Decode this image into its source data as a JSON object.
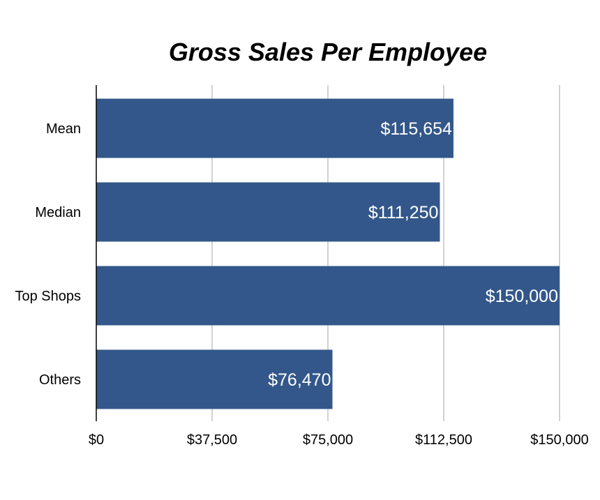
{
  "chart_data": {
    "type": "bar",
    "orientation": "horizontal",
    "title": "Gross Sales Per Employee",
    "xlabel": "",
    "ylabel": "",
    "categories": [
      "Mean",
      "Median",
      "Top Shops",
      "Others"
    ],
    "values": [
      115654,
      111250,
      150000,
      76470
    ],
    "value_labels": [
      "$115,654",
      "$111,250",
      "$150,000",
      "$76,470"
    ],
    "xlim": [
      0,
      150000
    ],
    "x_ticks": [
      0,
      37500,
      75000,
      112500,
      150000
    ],
    "x_tick_labels": [
      "$0",
      "$37,500",
      "$75,000",
      "$112,500",
      "$150,000"
    ],
    "grid": "vertical",
    "legend": "none",
    "colors": {
      "bar": "#33578A",
      "grid": "#B5B5B5",
      "axis": "#000000",
      "value_label": "#FFFFFF",
      "text": "#000000"
    }
  }
}
